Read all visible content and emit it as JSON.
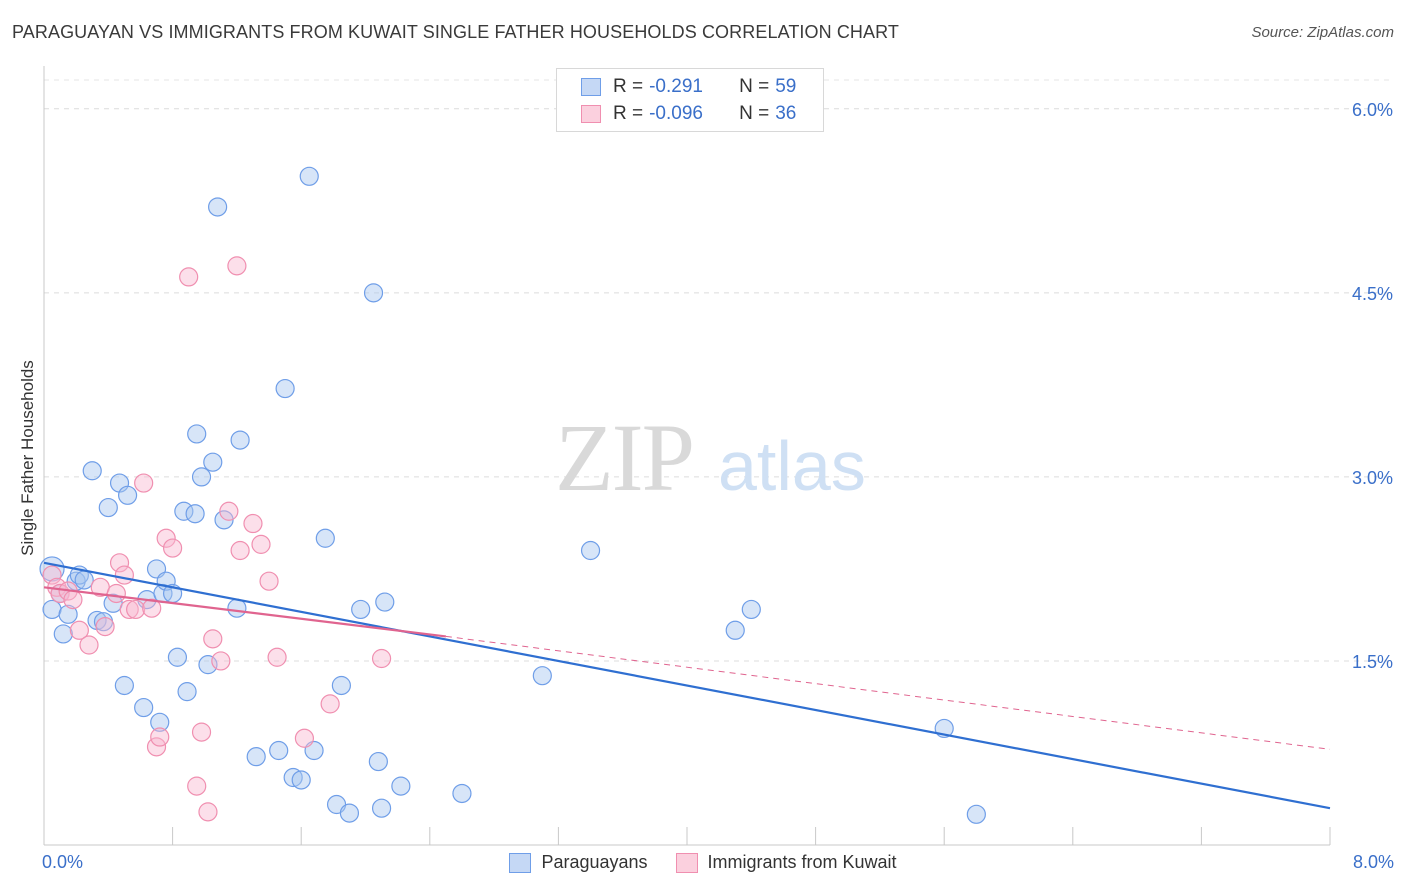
{
  "title": "PARAGUAYAN VS IMMIGRANTS FROM KUWAIT SINGLE FATHER HOUSEHOLDS CORRELATION CHART",
  "source": "Source: ZipAtlas.com",
  "watermark": {
    "zip": "ZIP",
    "atlas": "atlas"
  },
  "legend_top": {
    "rows": [
      {
        "r_label": "R = ",
        "r_value": "-0.291",
        "n_label": "N = ",
        "n_value": "59",
        "color": "#6f9ee8"
      },
      {
        "r_label": "R = ",
        "r_value": "-0.096",
        "n_label": "N = ",
        "n_value": "36",
        "color": "#f08fb0"
      }
    ]
  },
  "legend_bottom": [
    {
      "label": "Paraguayans",
      "color": "#6f9ee8"
    },
    {
      "label": "Immigrants from Kuwait",
      "color": "#f08fb0"
    }
  ],
  "chart_data": {
    "type": "scatter",
    "title": "PARAGUAYAN VS IMMIGRANTS FROM KUWAIT SINGLE FATHER HOUSEHOLDS CORRELATION CHART",
    "xlabel": "",
    "ylabel": "Single Father Households",
    "xlim": [
      0.0,
      8.0
    ],
    "ylim": [
      0.0,
      6.3
    ],
    "x_tick_labels": [
      "0.0%",
      "8.0%"
    ],
    "y_ticks": [
      1.5,
      3.0,
      4.5,
      6.0
    ],
    "y_tick_labels": [
      "1.5%",
      "3.0%",
      "4.5%",
      "6.0%"
    ],
    "grid": "horizontal dashed",
    "legend_placement": "top-center and bottom",
    "series": [
      {
        "name": "Paraguayans",
        "color": "#6f9ee8",
        "trend": {
          "x": [
            0.0,
            8.0
          ],
          "y": [
            2.3,
            0.3
          ],
          "style": "solid",
          "color": "#2f6fd1"
        },
        "points": [
          [
            0.05,
            2.25
          ],
          [
            0.05,
            1.92
          ],
          [
            0.1,
            2.05
          ],
          [
            0.12,
            1.72
          ],
          [
            0.15,
            1.88
          ],
          [
            0.2,
            2.15
          ],
          [
            0.22,
            2.2
          ],
          [
            0.25,
            2.16
          ],
          [
            0.3,
            3.05
          ],
          [
            0.33,
            1.83
          ],
          [
            0.37,
            1.82
          ],
          [
            0.4,
            2.75
          ],
          [
            0.43,
            1.97
          ],
          [
            0.47,
            2.95
          ],
          [
            0.5,
            1.3
          ],
          [
            0.52,
            2.85
          ],
          [
            0.62,
            1.12
          ],
          [
            0.64,
            2.0
          ],
          [
            0.7,
            2.25
          ],
          [
            0.72,
            1.0
          ],
          [
            0.74,
            2.05
          ],
          [
            0.76,
            2.15
          ],
          [
            0.8,
            2.05
          ],
          [
            0.83,
            1.53
          ],
          [
            0.87,
            2.72
          ],
          [
            0.89,
            1.25
          ],
          [
            0.94,
            2.7
          ],
          [
            0.95,
            3.35
          ],
          [
            0.98,
            3.0
          ],
          [
            1.02,
            1.47
          ],
          [
            1.05,
            3.12
          ],
          [
            1.08,
            5.2
          ],
          [
            1.12,
            2.65
          ],
          [
            1.2,
            1.93
          ],
          [
            1.22,
            3.3
          ],
          [
            1.32,
            0.72
          ],
          [
            1.46,
            0.77
          ],
          [
            1.5,
            3.72
          ],
          [
            1.55,
            0.55
          ],
          [
            1.6,
            0.53
          ],
          [
            1.65,
            5.45
          ],
          [
            1.68,
            0.77
          ],
          [
            1.75,
            2.5
          ],
          [
            1.82,
            0.33
          ],
          [
            1.85,
            1.3
          ],
          [
            1.9,
            0.26
          ],
          [
            1.97,
            1.92
          ],
          [
            2.05,
            4.5
          ],
          [
            2.08,
            0.68
          ],
          [
            2.1,
            0.3
          ],
          [
            2.12,
            1.98
          ],
          [
            2.22,
            0.48
          ],
          [
            2.6,
            0.42
          ],
          [
            3.1,
            1.38
          ],
          [
            3.4,
            2.4
          ],
          [
            4.3,
            1.75
          ],
          [
            4.4,
            1.92
          ],
          [
            5.6,
            0.95
          ],
          [
            5.8,
            0.25
          ]
        ]
      },
      {
        "name": "Immigrants from Kuwait",
        "color": "#f08fb0",
        "trend": {
          "x": [
            0.0,
            2.5
          ],
          "y": [
            2.1,
            1.7
          ],
          "style": "solid",
          "color": "#e0648f",
          "extension": {
            "x": [
              2.5,
              8.0
            ],
            "y": [
              1.7,
              0.78
            ],
            "style": "dashed"
          }
        },
        "points": [
          [
            0.05,
            2.2
          ],
          [
            0.08,
            2.1
          ],
          [
            0.1,
            2.05
          ],
          [
            0.15,
            2.07
          ],
          [
            0.18,
            2.0
          ],
          [
            0.22,
            1.75
          ],
          [
            0.28,
            1.63
          ],
          [
            0.35,
            2.1
          ],
          [
            0.38,
            1.78
          ],
          [
            0.45,
            2.05
          ],
          [
            0.47,
            2.3
          ],
          [
            0.5,
            2.2
          ],
          [
            0.53,
            1.92
          ],
          [
            0.57,
            1.92
          ],
          [
            0.62,
            2.95
          ],
          [
            0.67,
            1.93
          ],
          [
            0.7,
            0.8
          ],
          [
            0.72,
            0.88
          ],
          [
            0.76,
            2.5
          ],
          [
            0.8,
            2.42
          ],
          [
            0.9,
            4.63
          ],
          [
            0.95,
            0.48
          ],
          [
            0.98,
            0.92
          ],
          [
            1.02,
            0.27
          ],
          [
            1.05,
            1.68
          ],
          [
            1.1,
            1.5
          ],
          [
            1.15,
            2.72
          ],
          [
            1.2,
            4.72
          ],
          [
            1.22,
            2.4
          ],
          [
            1.3,
            2.62
          ],
          [
            1.35,
            2.45
          ],
          [
            1.4,
            2.15
          ],
          [
            1.45,
            1.53
          ],
          [
            1.62,
            0.87
          ],
          [
            1.78,
            1.15
          ],
          [
            2.1,
            1.52
          ]
        ]
      }
    ]
  }
}
